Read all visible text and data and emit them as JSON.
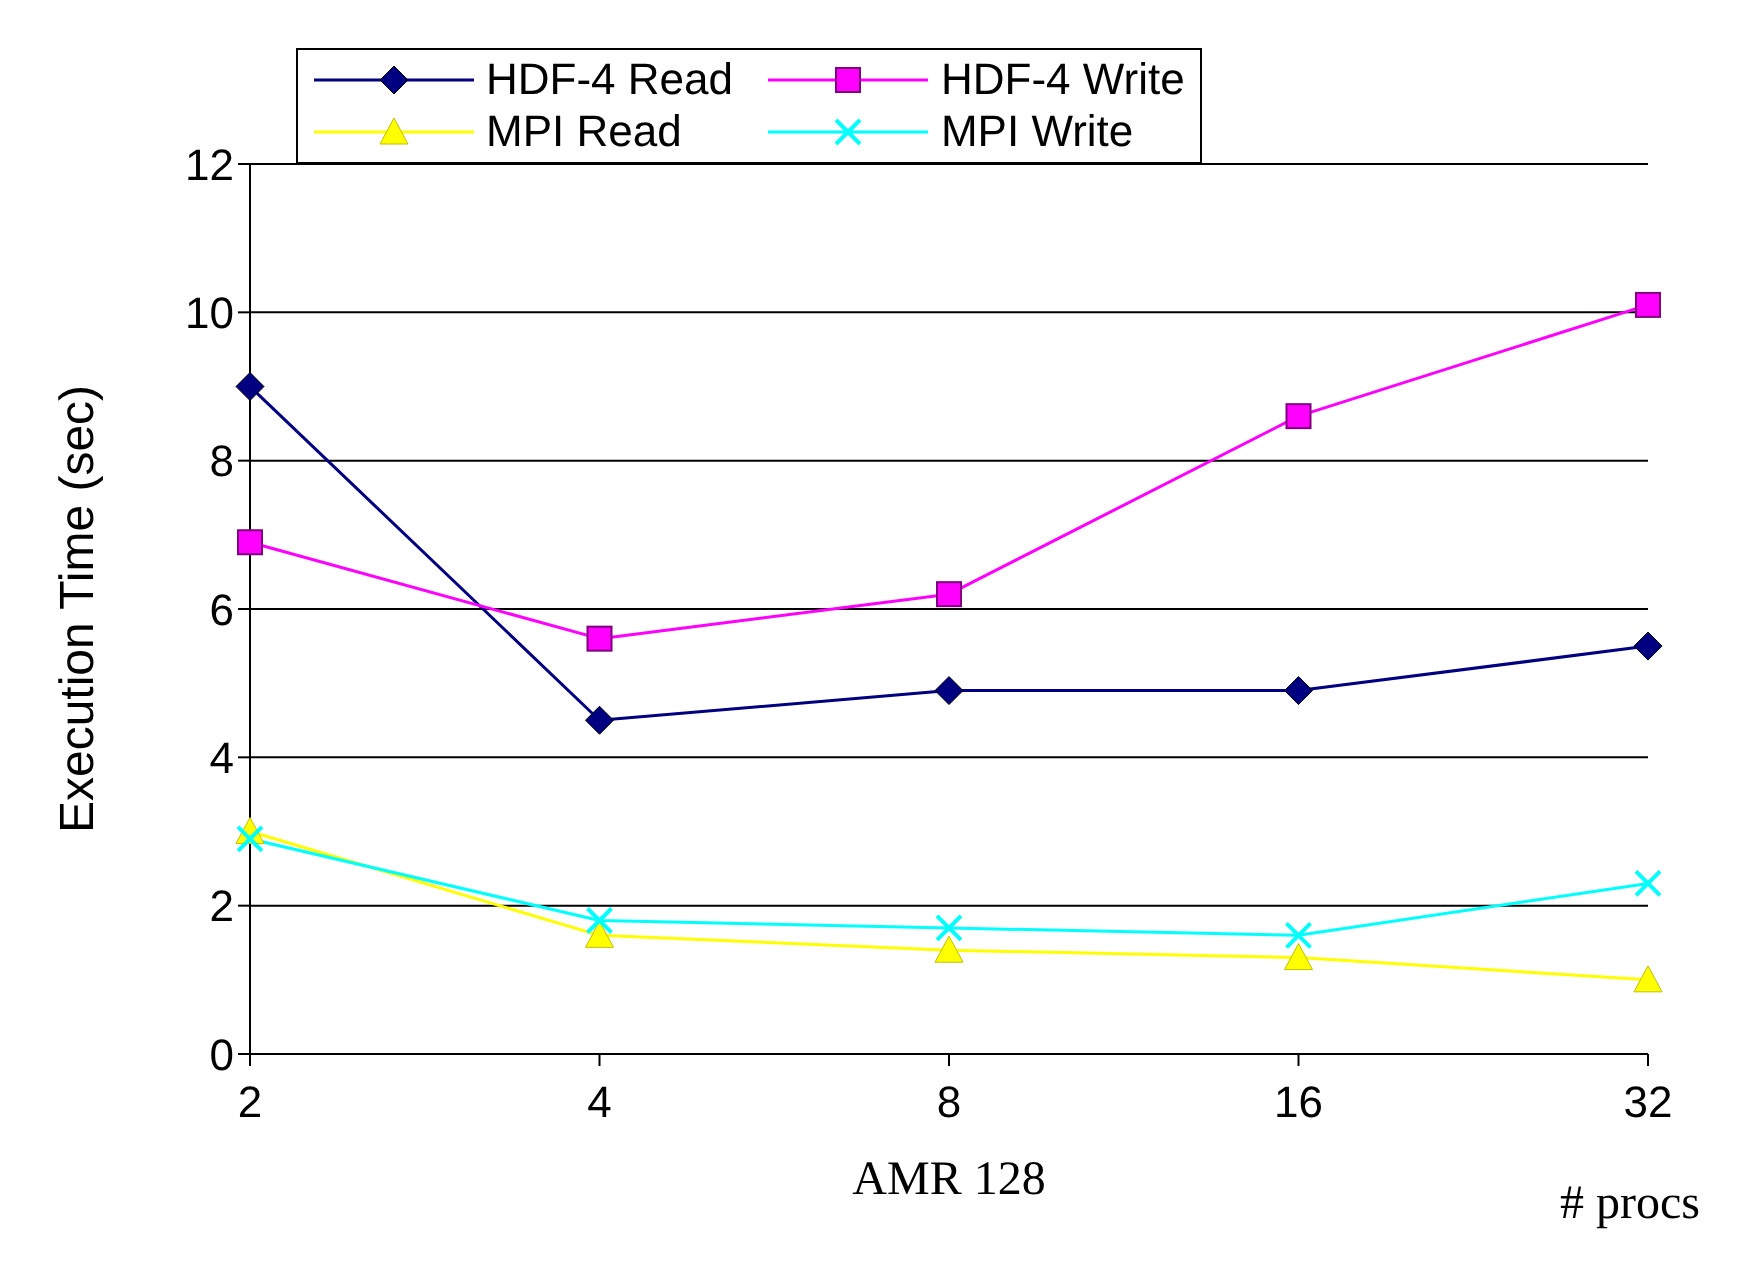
{
  "chart_data": {
    "type": "line",
    "xlabel": "AMR 128",
    "ylabel": "Execution Time (sec)",
    "annotations": [
      "# procs"
    ],
    "categories": [
      "2",
      "4",
      "8",
      "16",
      "32"
    ],
    "ylim": [
      0,
      12
    ],
    "yticks": [
      0,
      2,
      4,
      6,
      8,
      10,
      12
    ],
    "grid": "y",
    "legend": "top",
    "series": [
      {
        "name": "HDF-4 Read",
        "color": "#000080",
        "marker": "diamond",
        "values": [
          9.0,
          4.5,
          4.9,
          4.9,
          5.5
        ]
      },
      {
        "name": "HDF-4 Write",
        "color": "#ff00ff",
        "marker": "square",
        "values": [
          6.9,
          5.6,
          6.2,
          8.6,
          10.1
        ]
      },
      {
        "name": "MPI Read",
        "color": "#ffff00",
        "marker": "triangle",
        "values": [
          3.0,
          1.6,
          1.4,
          1.3,
          1.0
        ]
      },
      {
        "name": "MPI Write",
        "color": "#00ffff",
        "marker": "cross",
        "values": [
          2.9,
          1.8,
          1.7,
          1.6,
          2.3
        ]
      }
    ]
  }
}
